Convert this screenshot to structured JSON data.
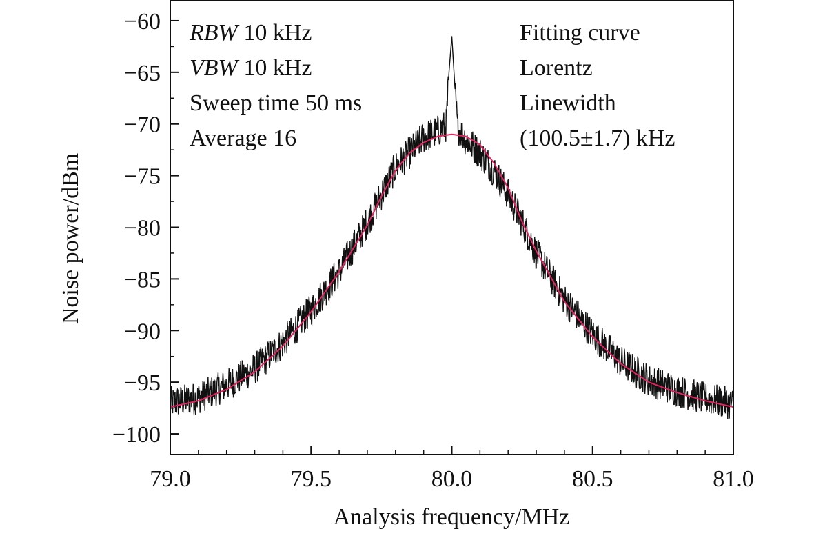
{
  "chart_data": {
    "type": "line",
    "xlabel": "Analysis frequency/MHz",
    "ylabel": "Noise power/dBm",
    "xlim": [
      79.0,
      81.0
    ],
    "ylim": [
      -102,
      -58
    ],
    "xticks": [
      79.0,
      79.5,
      80.0,
      80.5,
      81.0
    ],
    "xtick_labels": [
      "79.0",
      "79.5",
      "80.0",
      "80.5",
      "81.0"
    ],
    "yticks": [
      -60,
      -65,
      -70,
      -75,
      -80,
      -85,
      -90,
      -95,
      -100
    ],
    "ytick_labels": [
      "−60",
      "−65",
      "−70",
      "−75",
      "−80",
      "−85",
      "−90",
      "−95",
      "−100"
    ],
    "grid": false,
    "annotations_left": [
      {
        "italic": "RBW",
        "text": " 10 kHz"
      },
      {
        "italic": "VBW",
        "text": " 10 kHz"
      },
      {
        "italic": "",
        "text": "Sweep time 50 ms"
      },
      {
        "italic": "",
        "text": "Average 16"
      }
    ],
    "annotations_right": [
      "Fitting curve",
      "Lorentz",
      "Linewidth",
      "(100.5±1.7) kHz"
    ],
    "series": [
      {
        "color": "#111111",
        "x": [
          79.0,
          79.1,
          79.2,
          79.3,
          79.4,
          79.5,
          79.6,
          79.7,
          79.75,
          79.8,
          79.85,
          79.9,
          79.95,
          79.98,
          79.99,
          80.0,
          80.01,
          80.02,
          80.05,
          80.1,
          80.15,
          80.2,
          80.25,
          80.3,
          80.4,
          80.5,
          80.6,
          80.7,
          80.8,
          80.9,
          81.0
        ],
        "y": [
          -97.0,
          -96.5,
          -95.3,
          -93.7,
          -91.2,
          -88.0,
          -84.3,
          -79.5,
          -76.8,
          -74.2,
          -72.8,
          -71.3,
          -70.7,
          -70.2,
          -65.0,
          -61.5,
          -66.0,
          -70.3,
          -71.5,
          -72.8,
          -74.5,
          -76.8,
          -79.5,
          -82.5,
          -87.0,
          -90.3,
          -93.0,
          -94.8,
          -95.8,
          -96.6,
          -97.1
        ]
      },
      {
        "color": "#e0245e",
        "x": [
          79.0,
          79.1,
          79.2,
          79.3,
          79.4,
          79.5,
          79.6,
          79.7,
          79.75,
          79.8,
          79.85,
          79.9,
          79.95,
          80.0,
          80.05,
          80.1,
          80.15,
          80.2,
          80.25,
          80.3,
          80.4,
          80.5,
          80.6,
          80.7,
          80.8,
          80.9,
          81.0
        ],
        "y": [
          -97.4,
          -96.8,
          -95.7,
          -94.0,
          -91.5,
          -88.2,
          -84.3,
          -79.8,
          -77.0,
          -74.5,
          -72.8,
          -71.8,
          -71.2,
          -71.0,
          -71.2,
          -72.0,
          -73.8,
          -76.2,
          -79.5,
          -82.3,
          -87.2,
          -90.6,
          -93.2,
          -95.0,
          -96.0,
          -96.8,
          -97.4
        ]
      }
    ]
  }
}
